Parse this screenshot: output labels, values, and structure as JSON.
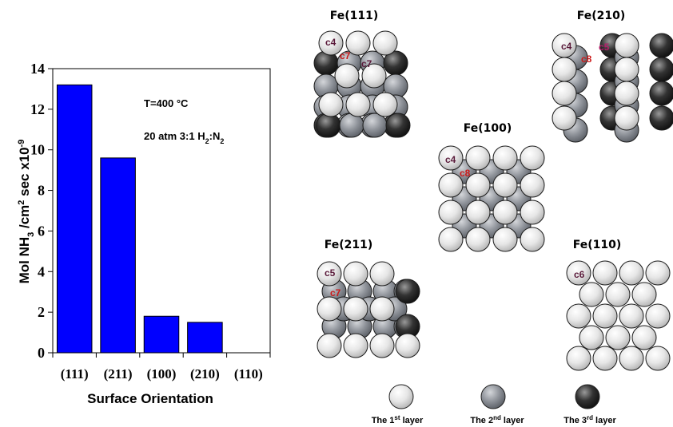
{
  "chart_data": {
    "type": "bar",
    "categories": [
      "(111)",
      "(211)",
      "(100)",
      "(210)",
      "(110)"
    ],
    "values": [
      13.2,
      9.6,
      1.8,
      1.5,
      0
    ],
    "xlabel": "Surface Orientation",
    "ylabel_parts": {
      "a": "Mol NH",
      "a_sub": "3",
      "b": " /cm",
      "b_sup": "2",
      "c": " sec x10",
      "c_sup": "-9"
    },
    "ylim": [
      0,
      14
    ],
    "yticks": [
      0,
      2,
      4,
      6,
      8,
      10,
      12,
      14
    ],
    "grid": false,
    "bar_color": "#0000ff",
    "annotation_temp": "T=400 °C",
    "annotation_pressure": {
      "a": "20 atm 3:1 H",
      "sub1": "2",
      "b": ":N",
      "sub2": "2"
    }
  },
  "surfaces": [
    {
      "title": "Fe(111)",
      "labels": [
        "c4",
        "c7",
        "c7"
      ]
    },
    {
      "title": "Fe(210)",
      "labels": [
        "c4",
        "c8",
        "c5"
      ]
    },
    {
      "title": "Fe(100)",
      "labels": [
        "c4",
        "c8"
      ]
    },
    {
      "title": "Fe(211)",
      "labels": [
        "c5",
        "c7"
      ]
    },
    {
      "title": "Fe(110)",
      "labels": [
        "c6"
      ]
    }
  ],
  "legend": [
    {
      "text": "The 1",
      "sup": "st",
      "rest": " layer",
      "color": "light"
    },
    {
      "text": "The 2",
      "sup": "nd",
      "rest": "  layer",
      "color": "mid"
    },
    {
      "text": "The 3",
      "sup": "rd",
      "rest": "  layer",
      "color": "dark"
    }
  ],
  "colors": {
    "atom_light": "#e8e8e8",
    "atom_mid": "#8e9299",
    "atom_dark": "#2a2a2a",
    "label_first": "#5a1a3a",
    "label_second": "#cc1a1a"
  }
}
